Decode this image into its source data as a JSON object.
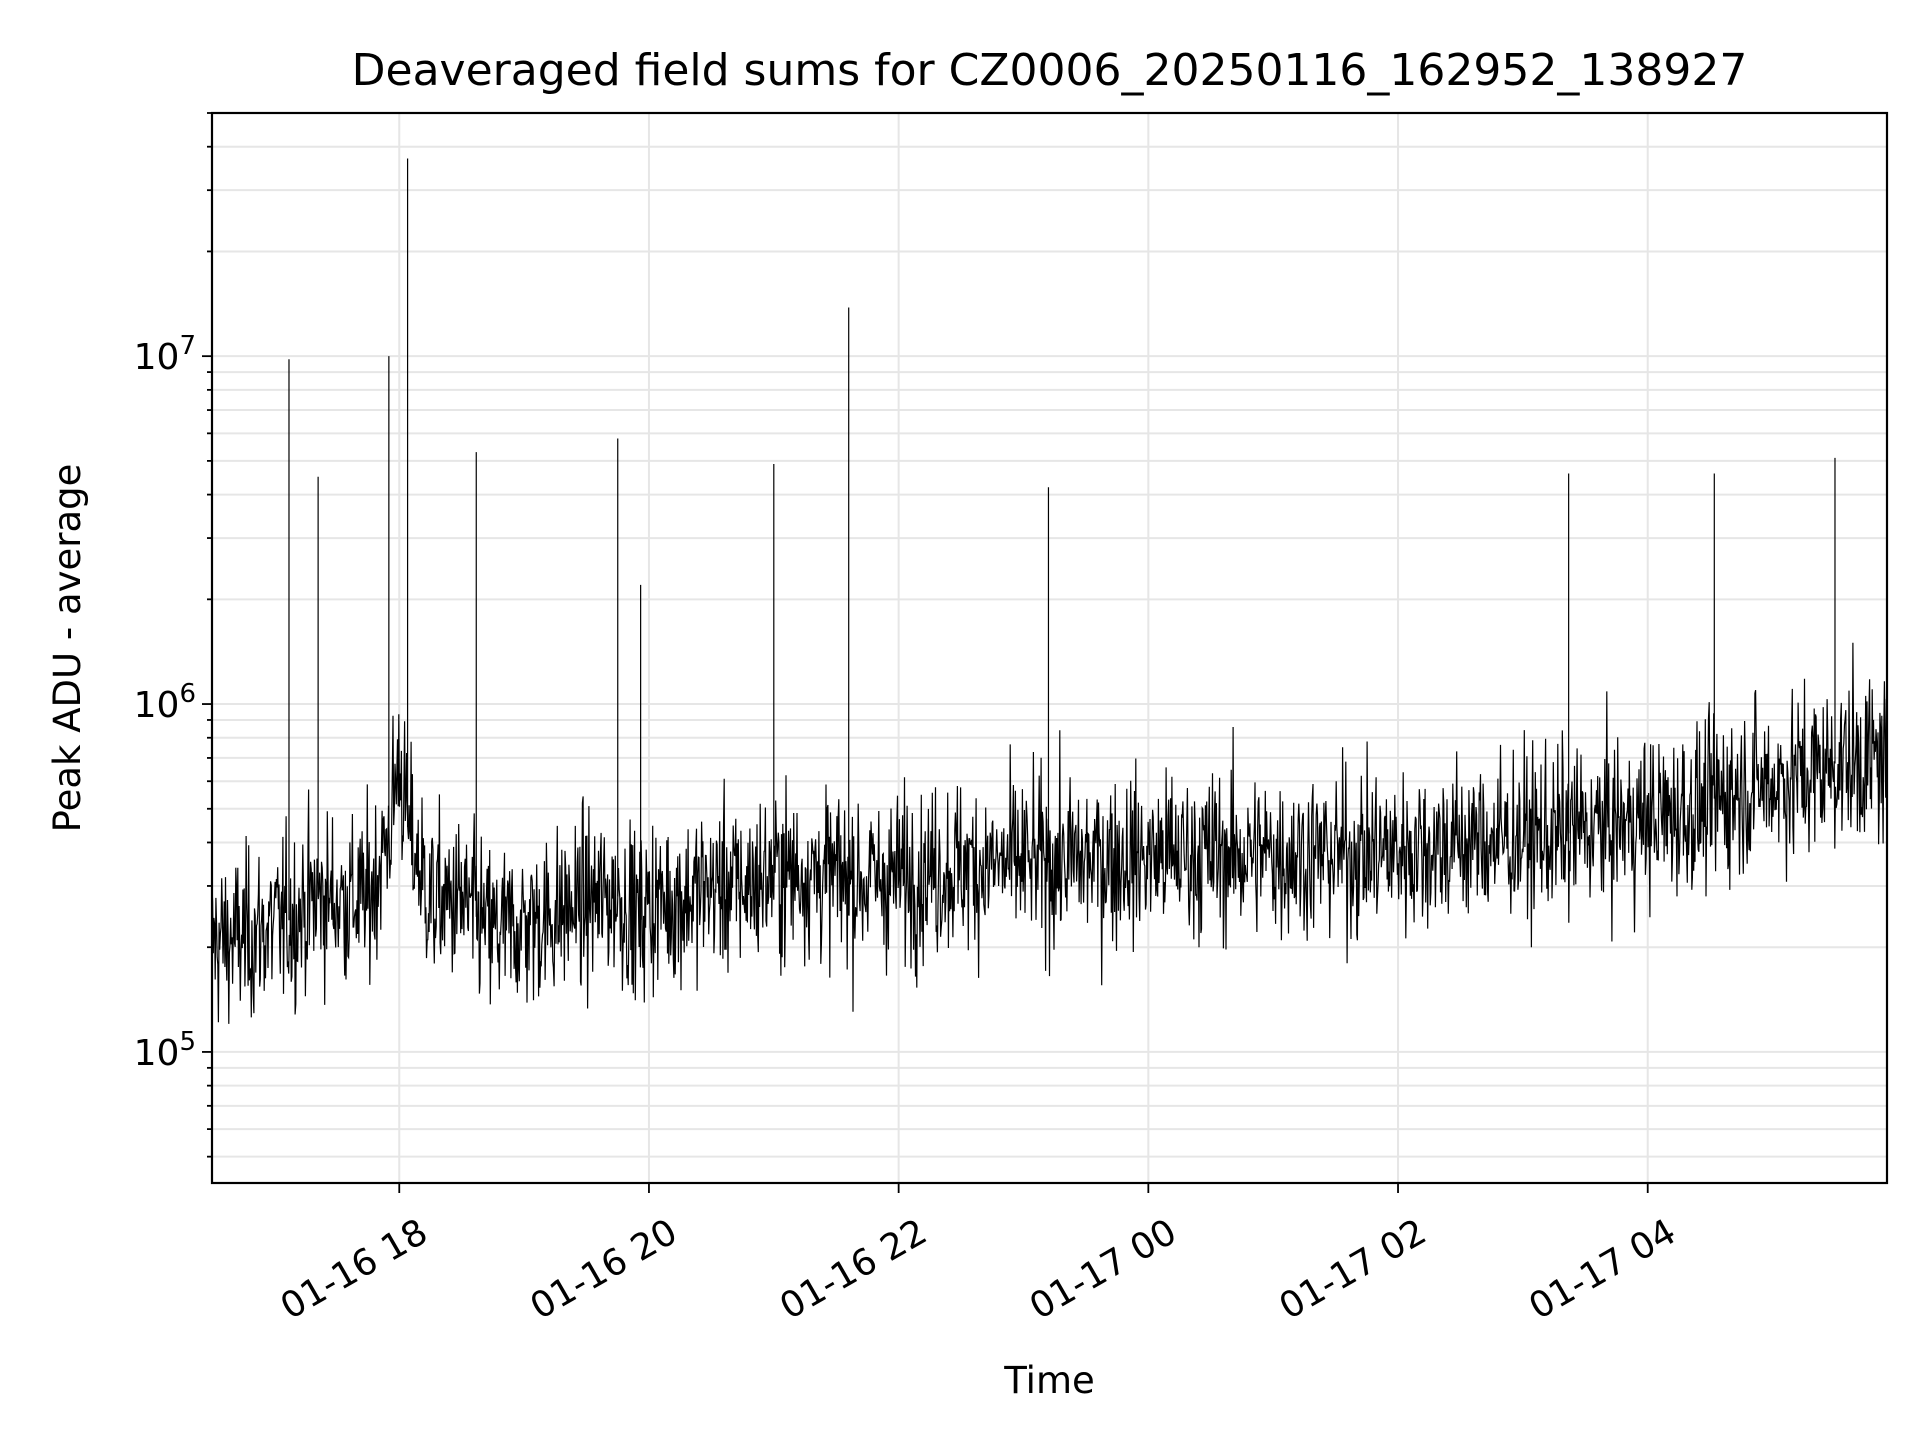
{
  "chart_data": {
    "type": "line",
    "title": "Deaveraged field sums for CZ0006_20250116_162952_138927",
    "xlabel": "Time",
    "ylabel": "Peak ADU - average",
    "y_scale": "log",
    "ylim": [
      42000,
      50000000
    ],
    "xlim": [
      "2025-01-16 16:30",
      "2025-01-17 05:55"
    ],
    "x_ticks": [
      {
        "t": "2025-01-16 18:00",
        "label": "01-16 18"
      },
      {
        "t": "2025-01-16 20:00",
        "label": "01-16 20"
      },
      {
        "t": "2025-01-16 22:00",
        "label": "01-16 22"
      },
      {
        "t": "2025-01-17 00:00",
        "label": "01-17 00"
      },
      {
        "t": "2025-01-17 02:00",
        "label": "01-17 02"
      },
      {
        "t": "2025-01-17 04:00",
        "label": "01-17 04"
      }
    ],
    "y_ticks": [
      {
        "v": 100000,
        "base": "10",
        "exp": "5"
      },
      {
        "v": 1000000,
        "base": "10",
        "exp": "6"
      },
      {
        "v": 10000000,
        "base": "10",
        "exp": "7"
      }
    ],
    "grid": true,
    "series": [
      {
        "color": "#000000",
        "x": [
          "2025-01-16 16:30",
          "2025-01-16 16:45",
          "2025-01-16 17:00",
          "2025-01-16 17:07",
          "2025-01-16 17:15",
          "2025-01-16 17:21",
          "2025-01-16 17:30",
          "2025-01-16 17:45",
          "2025-01-16 17:55",
          "2025-01-16 18:00",
          "2025-01-16 18:04",
          "2025-01-16 18:15",
          "2025-01-16 18:30",
          "2025-01-16 18:37",
          "2025-01-16 18:45",
          "2025-01-16 19:00",
          "2025-01-16 19:15",
          "2025-01-16 19:30",
          "2025-01-16 19:45",
          "2025-01-16 19:56",
          "2025-01-16 20:00",
          "2025-01-16 20:15",
          "2025-01-16 20:30",
          "2025-01-16 20:45",
          "2025-01-16 21:00",
          "2025-01-16 21:15",
          "2025-01-16 21:36",
          "2025-01-16 21:45",
          "2025-01-16 22:00",
          "2025-01-16 22:15",
          "2025-01-16 22:30",
          "2025-01-16 22:45",
          "2025-01-16 23:00",
          "2025-01-16 23:12",
          "2025-01-16 23:30",
          "2025-01-16 23:45",
          "2025-01-17 00:00",
          "2025-01-17 00:15",
          "2025-01-17 00:30",
          "2025-01-17 00:45",
          "2025-01-17 01:00",
          "2025-01-17 01:15",
          "2025-01-17 01:30",
          "2025-01-17 01:45",
          "2025-01-17 02:00",
          "2025-01-17 02:15",
          "2025-01-17 02:30",
          "2025-01-17 02:45",
          "2025-01-17 03:00",
          "2025-01-17 03:22",
          "2025-01-17 03:30",
          "2025-01-17 03:45",
          "2025-01-17 04:00",
          "2025-01-17 04:15",
          "2025-01-17 04:30",
          "2025-01-17 04:32",
          "2025-01-17 04:45",
          "2025-01-17 05:00",
          "2025-01-17 05:15",
          "2025-01-17 05:30",
          "2025-01-17 05:45",
          "2025-01-17 05:55"
        ],
        "y": [
          180000,
          240000,
          220000,
          9800000,
          260000,
          4500000,
          300000,
          250000,
          10000000,
          700000,
          37000000,
          280000,
          260000,
          5300000,
          230000,
          210000,
          260000,
          280000,
          5800000,
          2200000,
          240000,
          300000,
          280000,
          320000,
          4900000,
          330000,
          13800000,
          300000,
          320000,
          340000,
          330000,
          360000,
          340000,
          4200000,
          360000,
          350000,
          380000,
          360000,
          370000,
          380000,
          360000,
          370000,
          380000,
          360000,
          380000,
          400000,
          390000,
          410000,
          420000,
          4600000,
          430000,
          450000,
          470000,
          480000,
          520000,
          4600000,
          550000,
          600000,
          650000,
          5100000,
          700000,
          680000
        ]
      }
    ]
  }
}
